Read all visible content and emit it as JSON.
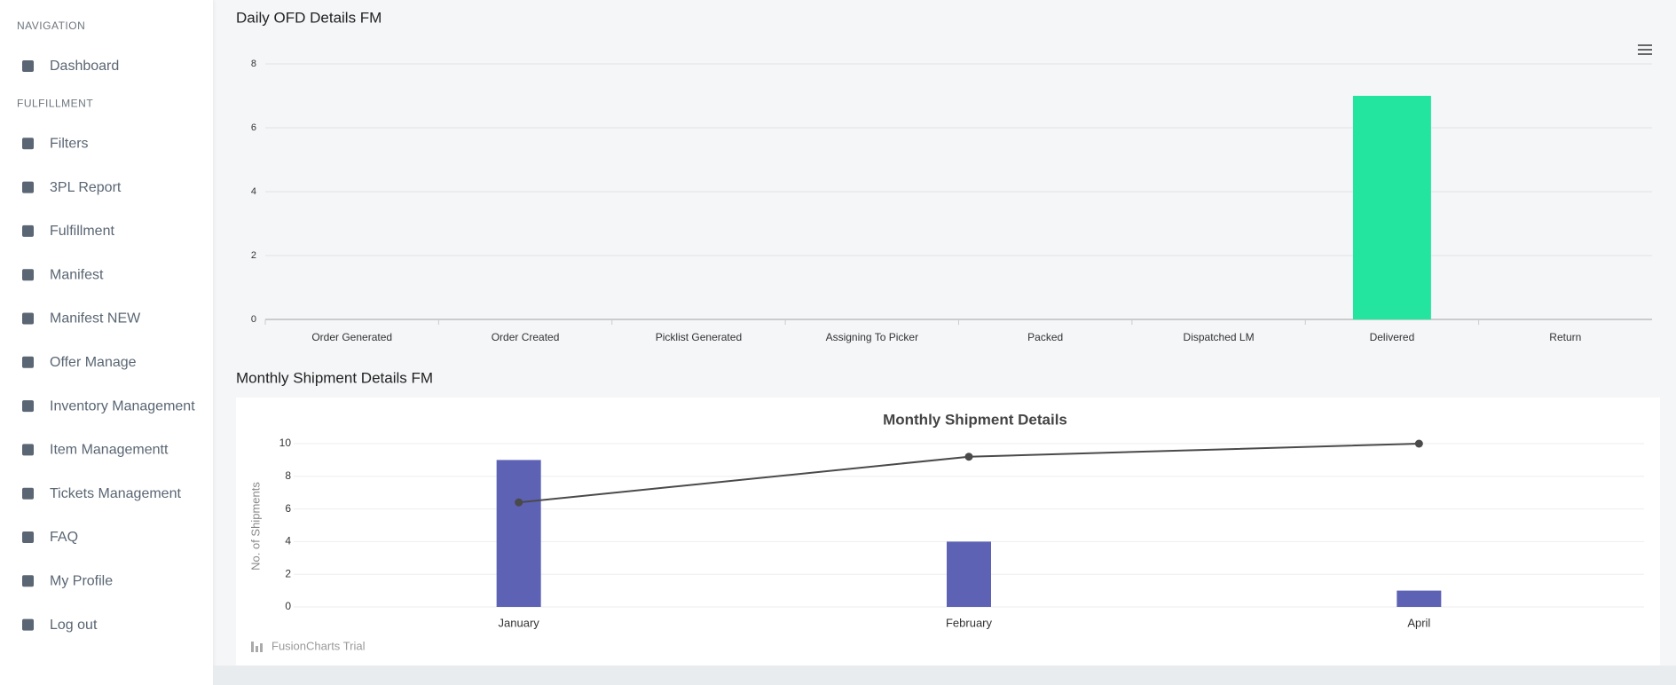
{
  "sidebar": {
    "sections": [
      {
        "title": "NAVIGATION",
        "items": [
          "Dashboard"
        ]
      },
      {
        "title": "FULFILLMENT",
        "items": [
          "Filters",
          "3PL Report",
          "Fulfillment",
          "Manifest",
          "Manifest NEW",
          "Offer Manage",
          "Inventory Management",
          "Item Managementt",
          "Tickets Management",
          "FAQ",
          "My Profile",
          "Log out"
        ]
      }
    ]
  },
  "chart_data": [
    {
      "type": "bar",
      "title": "Daily OFD Details FM",
      "categories": [
        "Order Generated",
        "Order Created",
        "Picklist Generated",
        "Assigning To Picker",
        "Packed",
        "Dispatched LM",
        "Delivered",
        "Return"
      ],
      "values": [
        0,
        0,
        0,
        0,
        0,
        0,
        7,
        0
      ],
      "color": "#23e5a0",
      "ylim": [
        0,
        8
      ],
      "yticks": [
        0,
        2,
        4,
        6,
        8
      ],
      "grid": true
    },
    {
      "type": "combo",
      "heading": "Monthly Shipment Details FM",
      "title": "Monthly Shipment Details",
      "y_label": "No. of Shipments",
      "credit": "FusionCharts Trial",
      "categories": [
        "January",
        "February",
        "April"
      ],
      "series": [
        {
          "type": "bar",
          "color": "#5d62b5",
          "values": [
            9,
            4,
            1
          ]
        },
        {
          "type": "line",
          "color": "#4a4a4a",
          "values": [
            6.4,
            9.2,
            10
          ]
        }
      ],
      "ylim": [
        0,
        10
      ],
      "yticks": [
        0,
        2,
        4,
        6,
        8,
        10
      ],
      "grid": true
    }
  ]
}
